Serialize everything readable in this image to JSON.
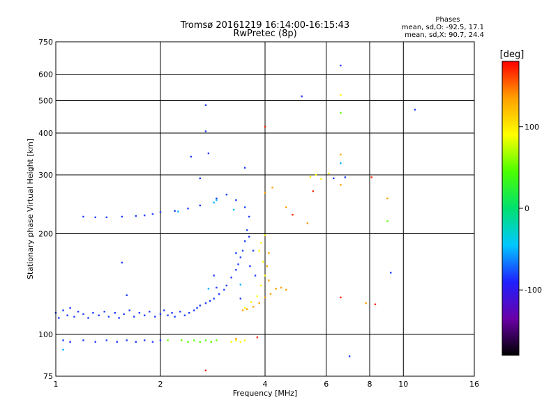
{
  "chart_data": {
    "type": "scatter",
    "title": "Tromsø 20161219 16:14:00-16:15:43",
    "subtitle": "RwPretec (8p)",
    "xlabel": "Frequency [MHz]",
    "ylabel": "Stationary phase Virtual Height [km]",
    "x_scale": "log",
    "y_scale": "log",
    "xlim": [
      1,
      16
    ],
    "ylim": [
      75,
      750
    ],
    "x_ticks": [
      1,
      2,
      4,
      6,
      8,
      10,
      16
    ],
    "y_ticks": [
      75,
      100,
      200,
      300,
      400,
      500,
      600,
      750
    ],
    "grid": true,
    "phases_box": {
      "title": "Phases",
      "line_o": "mean, sd,O: -92.5, 17.1",
      "line_x": "mean, sd,X:  90.7, 24.4"
    },
    "colorbar": {
      "label": "[deg]",
      "min": -180,
      "max": 180,
      "ticks": [
        100,
        0,
        -100
      ],
      "colors": [
        "#000000",
        "#6a00a8",
        "#2020ff",
        "#00c8ff",
        "#00e070",
        "#4cff00",
        "#ffff00",
        "#ffa000",
        "#ff0000"
      ]
    },
    "series": [
      {
        "color": "#1e3cff",
        "points": [
          [
            1.0,
            116
          ],
          [
            1.02,
            112
          ],
          [
            1.05,
            118
          ],
          [
            1.08,
            114
          ],
          [
            1.1,
            120
          ],
          [
            1.13,
            113
          ],
          [
            1.16,
            117
          ],
          [
            1.2,
            115
          ],
          [
            1.24,
            112
          ],
          [
            1.28,
            116
          ],
          [
            1.33,
            114
          ],
          [
            1.38,
            117
          ],
          [
            1.42,
            113
          ],
          [
            1.48,
            116
          ],
          [
            1.52,
            112
          ],
          [
            1.57,
            115
          ],
          [
            1.63,
            118
          ],
          [
            1.68,
            113
          ],
          [
            1.74,
            116
          ],
          [
            1.8,
            114
          ],
          [
            1.86,
            117
          ],
          [
            1.93,
            113
          ],
          [
            2.0,
            115
          ],
          [
            2.05,
            118
          ],
          [
            2.1,
            114
          ],
          [
            2.16,
            116
          ],
          [
            2.2,
            113
          ],
          [
            2.28,
            117
          ],
          [
            2.35,
            114
          ],
          [
            2.42,
            116
          ],
          [
            2.5,
            118
          ],
          [
            2.55,
            120
          ],
          [
            2.6,
            122
          ],
          [
            2.7,
            124
          ],
          [
            2.78,
            126
          ],
          [
            2.85,
            128
          ],
          [
            2.95,
            132
          ],
          [
            3.05,
            136
          ],
          [
            3.1,
            140
          ],
          [
            3.2,
            148
          ],
          [
            3.3,
            156
          ],
          [
            3.35,
            162
          ],
          [
            3.4,
            170
          ],
          [
            3.45,
            178
          ],
          [
            3.5,
            190
          ],
          [
            3.55,
            205
          ],
          [
            3.6,
            225
          ],
          [
            3.5,
            240
          ],
          [
            3.3,
            252
          ],
          [
            3.1,
            262
          ],
          [
            2.9,
            255
          ],
          [
            2.6,
            243
          ],
          [
            2.4,
            238
          ],
          [
            2.2,
            234
          ],
          [
            2.0,
            232
          ],
          [
            1.9,
            229
          ],
          [
            1.8,
            227
          ],
          [
            1.7,
            226
          ],
          [
            1.55,
            225
          ],
          [
            1.4,
            224
          ],
          [
            1.3,
            224
          ],
          [
            1.2,
            225
          ],
          [
            1.05,
            96
          ],
          [
            1.1,
            95
          ],
          [
            1.2,
            96
          ],
          [
            1.3,
            95
          ],
          [
            1.4,
            96
          ],
          [
            1.5,
            95
          ],
          [
            1.6,
            96
          ],
          [
            1.7,
            95
          ],
          [
            1.8,
            96
          ],
          [
            1.9,
            95
          ],
          [
            2.0,
            96
          ],
          [
            3.6,
            196
          ],
          [
            3.7,
            178
          ],
          [
            3.62,
            160
          ],
          [
            3.75,
            150
          ],
          [
            6.3,
            293
          ],
          [
            6.8,
            295
          ],
          [
            3.3,
            175
          ],
          [
            2.85,
            150
          ],
          [
            1.55,
            164
          ],
          [
            5.1,
            515
          ],
          [
            2.7,
            485
          ],
          [
            2.7,
            405
          ],
          [
            2.45,
            340
          ],
          [
            2.75,
            348
          ],
          [
            3.5,
            315
          ],
          [
            6.6,
            637
          ],
          [
            7.0,
            86
          ],
          [
            9.2,
            153
          ],
          [
            2.6,
            293
          ],
          [
            10.8,
            470
          ],
          [
            2.9,
            138
          ],
          [
            3.4,
            128
          ],
          [
            1.6,
            131
          ]
        ]
      },
      {
        "color": "#00b0ff",
        "points": [
          [
            2.85,
            248
          ],
          [
            2.9,
            252
          ],
          [
            1.05,
            90
          ],
          [
            3.25,
            236
          ],
          [
            2.25,
            233
          ],
          [
            6.6,
            325
          ],
          [
            2.75,
            137
          ],
          [
            3.4,
            141
          ]
        ]
      },
      {
        "color": "#5cff00",
        "points": [
          [
            2.3,
            96
          ],
          [
            2.4,
            95
          ],
          [
            2.5,
            96
          ],
          [
            2.6,
            95
          ],
          [
            2.7,
            96
          ],
          [
            2.8,
            95
          ],
          [
            2.9,
            96
          ],
          [
            2.1,
            96
          ],
          [
            6.6,
            460
          ],
          [
            9.0,
            218
          ]
        ]
      },
      {
        "color": "#ffff00",
        "points": [
          [
            3.2,
            95
          ],
          [
            3.3,
            96
          ],
          [
            3.4,
            95
          ],
          [
            3.5,
            96
          ],
          [
            5.6,
            300
          ],
          [
            5.4,
            296
          ],
          [
            5.8,
            292
          ],
          [
            6.1,
            303
          ],
          [
            3.65,
            125
          ],
          [
            3.8,
            130
          ],
          [
            3.9,
            140
          ],
          [
            4.0,
            150
          ],
          [
            3.95,
            165
          ],
          [
            3.85,
            178
          ],
          [
            3.9,
            188
          ],
          [
            4.0,
            198
          ],
          [
            6.6,
            520
          ],
          [
            3.5,
            120
          ]
        ]
      },
      {
        "color": "#ffa000",
        "points": [
          [
            3.45,
            118
          ],
          [
            3.55,
            119
          ],
          [
            3.7,
            121
          ],
          [
            3.85,
            124
          ],
          [
            4.0,
            129
          ],
          [
            4.15,
            132
          ],
          [
            4.3,
            137
          ],
          [
            4.45,
            138
          ],
          [
            4.6,
            136
          ],
          [
            4.1,
            145
          ],
          [
            4.05,
            160
          ],
          [
            4.1,
            175
          ],
          [
            4.0,
            265
          ],
          [
            4.2,
            275
          ],
          [
            4.6,
            240
          ],
          [
            5.3,
            215
          ],
          [
            6.6,
            345
          ],
          [
            6.6,
            280
          ],
          [
            9.0,
            255
          ],
          [
            7.8,
            124
          ],
          [
            3.3,
            97
          ]
        ]
      },
      {
        "color": "#ff2000",
        "points": [
          [
            4.0,
            418
          ],
          [
            6.6,
            129
          ],
          [
            8.1,
            295
          ],
          [
            2.7,
            78
          ],
          [
            3.8,
            98
          ],
          [
            4.8,
            228
          ],
          [
            5.5,
            268
          ],
          [
            8.3,
            123
          ]
        ]
      }
    ]
  }
}
